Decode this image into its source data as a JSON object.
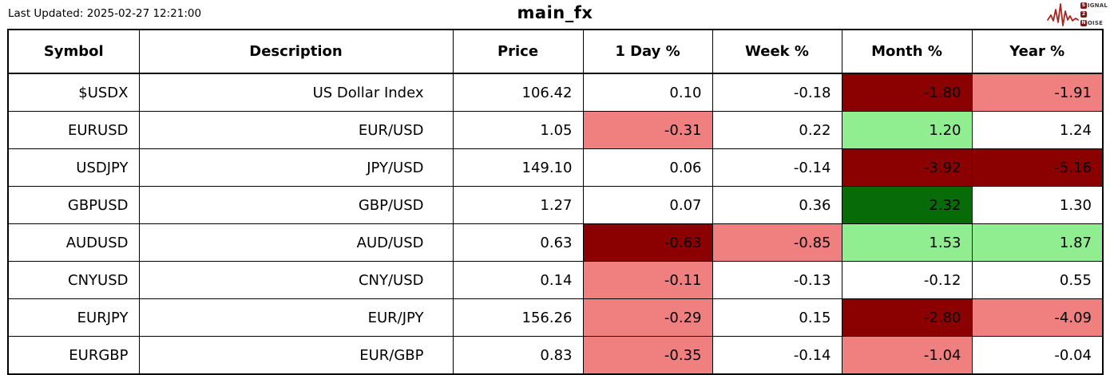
{
  "header": {
    "last_updated": "Last Updated: 2025-02-27 12:21:00",
    "title": "main_fx",
    "logo": {
      "l1_initial": "S",
      "l1_rest": "IGNAL",
      "l2_initial": "2",
      "l2_rest": "",
      "l3_initial": "N",
      "l3_rest": "OISE"
    }
  },
  "colors": {
    "neg_strong": "#8b0000",
    "neg_mild": "#f08080",
    "pos_mild": "#90ee90",
    "pos_strong": "#076b07",
    "logo_red": "#a82521",
    "logo_box": "#7d1a15"
  },
  "chart_data": {
    "type": "table",
    "title": "main_fx",
    "columns": [
      "Symbol",
      "Description",
      "Price",
      "1 Day %",
      "Week %",
      "Month %",
      "Year %"
    ],
    "rows": [
      {
        "cells": [
          {
            "v": "$USDX",
            "bg": null
          },
          {
            "v": "US Dollar Index",
            "bg": null
          },
          {
            "v": "106.42",
            "bg": null
          },
          {
            "v": "0.10",
            "bg": null
          },
          {
            "v": "-0.18",
            "bg": null
          },
          {
            "v": "-1.80",
            "bg": "neg_strong"
          },
          {
            "v": "-1.91",
            "bg": "neg_mild"
          }
        ]
      },
      {
        "cells": [
          {
            "v": "EURUSD",
            "bg": null
          },
          {
            "v": "EUR/USD",
            "bg": null
          },
          {
            "v": "1.05",
            "bg": null
          },
          {
            "v": "-0.31",
            "bg": "neg_mild"
          },
          {
            "v": "0.22",
            "bg": null
          },
          {
            "v": "1.20",
            "bg": "pos_mild"
          },
          {
            "v": "1.24",
            "bg": null
          }
        ]
      },
      {
        "cells": [
          {
            "v": "USDJPY",
            "bg": null
          },
          {
            "v": "JPY/USD",
            "bg": null
          },
          {
            "v": "149.10",
            "bg": null
          },
          {
            "v": "0.06",
            "bg": null
          },
          {
            "v": "-0.14",
            "bg": null
          },
          {
            "v": "-3.92",
            "bg": "neg_strong"
          },
          {
            "v": "-5.16",
            "bg": "neg_strong"
          }
        ]
      },
      {
        "cells": [
          {
            "v": "GBPUSD",
            "bg": null
          },
          {
            "v": "GBP/USD",
            "bg": null
          },
          {
            "v": "1.27",
            "bg": null
          },
          {
            "v": "0.07",
            "bg": null
          },
          {
            "v": "0.36",
            "bg": null
          },
          {
            "v": "2.32",
            "bg": "pos_strong"
          },
          {
            "v": "1.30",
            "bg": null
          }
        ]
      },
      {
        "cells": [
          {
            "v": "AUDUSD",
            "bg": null
          },
          {
            "v": "AUD/USD",
            "bg": null
          },
          {
            "v": "0.63",
            "bg": null
          },
          {
            "v": "-0.63",
            "bg": "neg_strong"
          },
          {
            "v": "-0.85",
            "bg": "neg_mild"
          },
          {
            "v": "1.53",
            "bg": "pos_mild"
          },
          {
            "v": "1.87",
            "bg": "pos_mild"
          }
        ]
      },
      {
        "cells": [
          {
            "v": "CNYUSD",
            "bg": null
          },
          {
            "v": "CNY/USD",
            "bg": null
          },
          {
            "v": "0.14",
            "bg": null
          },
          {
            "v": "-0.11",
            "bg": "neg_mild"
          },
          {
            "v": "-0.13",
            "bg": null
          },
          {
            "v": "-0.12",
            "bg": null
          },
          {
            "v": "0.55",
            "bg": null
          }
        ]
      },
      {
        "cells": [
          {
            "v": "EURJPY",
            "bg": null
          },
          {
            "v": "EUR/JPY",
            "bg": null
          },
          {
            "v": "156.26",
            "bg": null
          },
          {
            "v": "-0.29",
            "bg": "neg_mild"
          },
          {
            "v": "0.15",
            "bg": null
          },
          {
            "v": "-2.80",
            "bg": "neg_strong"
          },
          {
            "v": "-4.09",
            "bg": "neg_mild"
          }
        ]
      },
      {
        "cells": [
          {
            "v": "EURGBP",
            "bg": null
          },
          {
            "v": "EUR/GBP",
            "bg": null
          },
          {
            "v": "0.83",
            "bg": null
          },
          {
            "v": "-0.35",
            "bg": "neg_mild"
          },
          {
            "v": "-0.14",
            "bg": null
          },
          {
            "v": "-1.04",
            "bg": "neg_mild"
          },
          {
            "v": "-0.04",
            "bg": null
          }
        ]
      }
    ]
  }
}
